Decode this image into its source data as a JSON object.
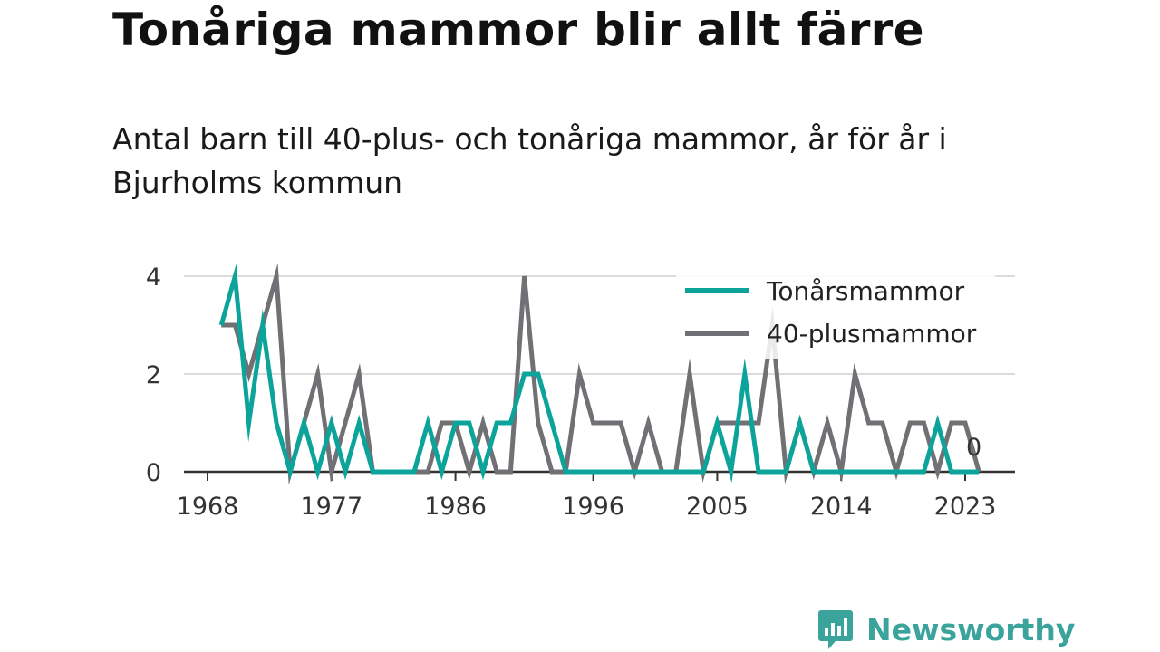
{
  "chart_data": {
    "type": "line",
    "title": "Tonåriga mammor blir allt färre",
    "subtitle": "Antal barn till 40-plus- och tonåriga mammor, år för år i Bjurholms kommun",
    "x": [
      1969,
      1970,
      1971,
      1972,
      1973,
      1974,
      1975,
      1976,
      1977,
      1978,
      1979,
      1980,
      1981,
      1982,
      1983,
      1984,
      1985,
      1986,
      1987,
      1988,
      1989,
      1990,
      1991,
      1992,
      1993,
      1994,
      1995,
      1996,
      1997,
      1998,
      1999,
      2000,
      2001,
      2002,
      2003,
      2004,
      2005,
      2006,
      2007,
      2008,
      2009,
      2010,
      2011,
      2012,
      2013,
      2014,
      2015,
      2016,
      2017,
      2018,
      2019,
      2020,
      2021,
      2022,
      2023,
      2024
    ],
    "xticks": [
      "1968",
      "1977",
      "1986",
      "1996",
      "2005",
      "2014",
      "2023"
    ],
    "xlim": [
      1968,
      2026
    ],
    "ylim": [
      0,
      4
    ],
    "yticks": [
      "0",
      "2",
      "4"
    ],
    "grid": true,
    "legend_position": "top-right",
    "series": [
      {
        "name": "Tonårsmammor",
        "color": "#0ca49a",
        "values": [
          3,
          4,
          1,
          3,
          1,
          0,
          1,
          0,
          1,
          0,
          1,
          0,
          0,
          0,
          0,
          1,
          0,
          1,
          1,
          0,
          1,
          1,
          2,
          2,
          1,
          0,
          0,
          0,
          0,
          0,
          0,
          0,
          0,
          0,
          0,
          0,
          1,
          0,
          2,
          0,
          0,
          0,
          1,
          0,
          0,
          0,
          0,
          0,
          0,
          0,
          0,
          0,
          1,
          0,
          0,
          0
        ]
      },
      {
        "name": "40-plusmammor",
        "color": "#717075",
        "values": [
          3,
          3,
          2,
          3,
          4,
          0,
          1,
          2,
          0,
          1,
          2,
          0,
          0,
          0,
          0,
          0,
          1,
          1,
          0,
          1,
          0,
          0,
          4,
          1,
          0,
          0,
          2,
          1,
          1,
          1,
          0,
          1,
          0,
          0,
          2,
          0,
          1,
          1,
          1,
          1,
          3,
          0,
          1,
          0,
          1,
          0,
          2,
          1,
          1,
          0,
          1,
          1,
          0,
          1,
          1,
          0
        ]
      }
    ],
    "end_label": "0"
  },
  "brand": {
    "name": "Newsworthy"
  }
}
